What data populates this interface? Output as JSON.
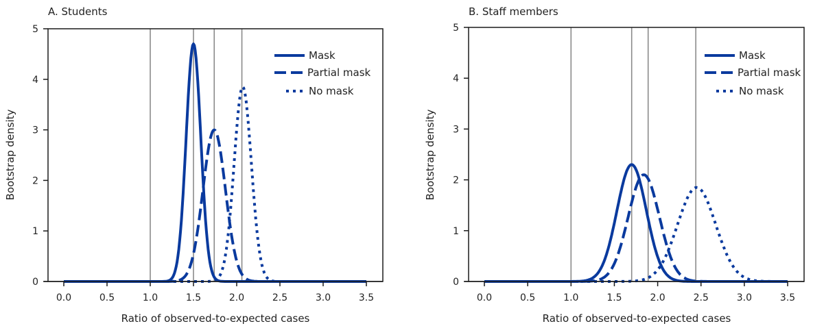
{
  "colors": {
    "series": "#0a3a9e",
    "axis": "#1a1a1a",
    "refline": "#8a8a8a"
  },
  "chart_data": [
    {
      "type": "line",
      "title": "A. Students",
      "xlabel": "Ratio of observed-to-expected cases",
      "ylabel": "Bootstrap density",
      "xlim": [
        0.0,
        3.5
      ],
      "ylim": [
        0,
        5
      ],
      "xticks": [
        "0.0",
        "0.5",
        "1.0",
        "1.5",
        "2.0",
        "2.5",
        "3.0",
        "3.5"
      ],
      "yticks": [
        "0",
        "1",
        "2",
        "3",
        "4",
        "5"
      ],
      "grid": false,
      "legend_position": "upper right",
      "reference_lines_x": [
        1.0,
        1.5,
        1.74,
        2.06
      ],
      "series": [
        {
          "name": "Mask",
          "style": "solid",
          "peak_x": 1.5,
          "peak_y": 4.7,
          "sd": 0.085
        },
        {
          "name": "Partial mask",
          "style": "dashed",
          "peak_x": 1.74,
          "peak_y": 3.0,
          "sd": 0.13
        },
        {
          "name": "No mask",
          "style": "dotted",
          "peak_x": 2.07,
          "peak_y": 3.85,
          "sd": 0.1
        }
      ]
    },
    {
      "type": "line",
      "title": "B. Staff members",
      "xlabel": "Ratio of observed-to-expected cases",
      "ylabel": "Bootstrap density",
      "xlim": [
        0.0,
        3.5
      ],
      "ylim": [
        0,
        5
      ],
      "xticks": [
        "0.0",
        "0.5",
        "1.0",
        "1.5",
        "2.0",
        "2.5",
        "3.0",
        "3.5"
      ],
      "yticks": [
        "0",
        "1",
        "2",
        "3",
        "4",
        "5"
      ],
      "grid": false,
      "legend_position": "upper right",
      "reference_lines_x": [
        1.0,
        1.7,
        1.89,
        2.44
      ],
      "series": [
        {
          "name": "Mask",
          "style": "solid",
          "peak_x": 1.7,
          "peak_y": 2.3,
          "sd": 0.17
        },
        {
          "name": "Partial mask",
          "style": "dashed",
          "peak_x": 1.84,
          "peak_y": 2.1,
          "sd": 0.18
        },
        {
          "name": "No mask",
          "style": "dotted",
          "peak_x": 2.45,
          "peak_y": 1.85,
          "sd": 0.22
        }
      ]
    }
  ],
  "panels": [
    {
      "title": "A. Students",
      "xlabel": "Ratio of observed-to-expected cases",
      "ylabel": "Bootstrap density",
      "legend": [
        "Mask",
        "Partial mask",
        "No mask"
      ]
    },
    {
      "title": "B. Staff members",
      "xlabel": "Ratio of observed-to-expected cases",
      "ylabel": "Bootstrap density",
      "legend": [
        "Mask",
        "Partial mask",
        "No mask"
      ]
    }
  ]
}
